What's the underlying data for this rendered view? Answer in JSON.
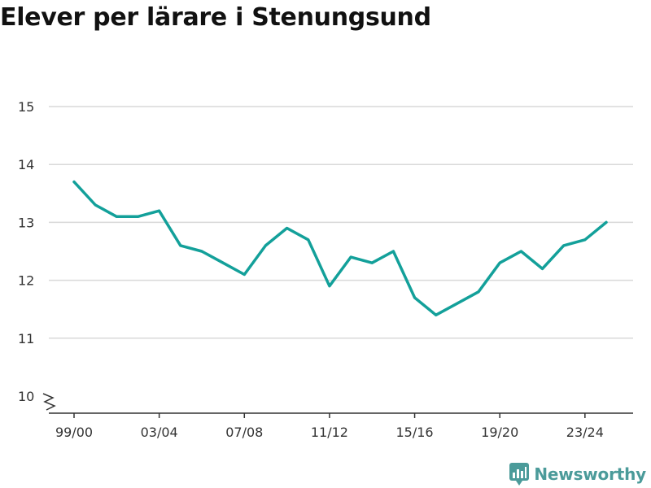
{
  "chart_data": {
    "type": "line",
    "title": "Elever per lärare i Stenungsund",
    "xlabel": "",
    "ylabel": "",
    "ylim": [
      10,
      15
    ],
    "yticks": [
      "10",
      "11",
      "12",
      "13",
      "14",
      "15"
    ],
    "xticks": [
      "99/00",
      "03/04",
      "07/08",
      "11/12",
      "15/16",
      "19/20",
      "23/24"
    ],
    "grid": true,
    "axis_break": true,
    "line_color": "#13a09a",
    "series": [
      {
        "x": [
          "99/00",
          "00/01",
          "01/02",
          "02/03",
          "03/04",
          "04/05",
          "05/06",
          "06/07",
          "07/08",
          "08/09",
          "09/10",
          "10/11",
          "11/12",
          "12/13",
          "13/14",
          "14/15",
          "15/16",
          "16/17",
          "17/18",
          "18/19",
          "19/20",
          "20/21",
          "21/22",
          "22/23",
          "23/24",
          "24/25"
        ],
        "values": [
          13.7,
          13.3,
          13.1,
          13.1,
          13.2,
          12.6,
          12.5,
          12.3,
          12.1,
          12.6,
          12.9,
          12.7,
          11.9,
          12.4,
          12.3,
          12.5,
          11.7,
          11.4,
          11.6,
          11.8,
          12.3,
          12.5,
          12.2,
          12.6,
          12.7,
          13.0
        ]
      }
    ]
  },
  "brand": {
    "name": "Newsworthy",
    "icon": "newsworthy-logo-icon",
    "color": "#4b9b9a"
  }
}
